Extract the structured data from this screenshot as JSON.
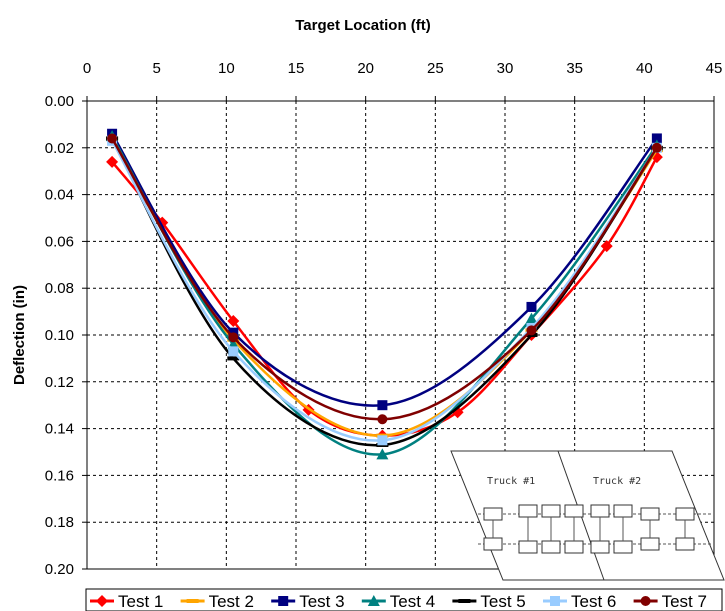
{
  "chart_data": {
    "type": "line",
    "xlabel": "Target Location (ft)",
    "ylabel": "Deflection (in)",
    "xlim": [
      0,
      45
    ],
    "ylim": [
      0,
      0.2
    ],
    "y_inverted": true,
    "x_axis_position": "top",
    "x_ticks": [
      "0",
      "5",
      "10",
      "15",
      "20",
      "25",
      "30",
      "35",
      "40",
      "45"
    ],
    "y_ticks": [
      "0.00",
      "0.02",
      "0.04",
      "0.06",
      "0.08",
      "0.10",
      "0.12",
      "0.14",
      "0.16",
      "0.18",
      "0.20"
    ],
    "grid": true,
    "legend_position": "bottom",
    "series": [
      {
        "name": "Test 1",
        "color": "#ff0000",
        "marker": "diamond",
        "x": [
          1.8,
          5.4,
          10.5,
          15.9,
          21.2,
          26.6,
          31.9,
          37.3,
          40.9
        ],
        "y": [
          0.026,
          0.052,
          0.094,
          0.132,
          0.143,
          0.133,
          0.1,
          0.062,
          0.024
        ]
      },
      {
        "name": "Test 2",
        "color": "#ffa500",
        "marker": "dash",
        "x": [
          1.8,
          10.5,
          21.2,
          31.9,
          40.9
        ],
        "y": [
          0.016,
          0.102,
          0.143,
          0.098,
          0.021
        ]
      },
      {
        "name": "Test 3",
        "color": "#000080",
        "marker": "square",
        "x": [
          1.8,
          10.5,
          21.2,
          31.9,
          40.9
        ],
        "y": [
          0.014,
          0.099,
          0.13,
          0.088,
          0.016
        ]
      },
      {
        "name": "Test 4",
        "color": "#008080",
        "marker": "triangle",
        "x": [
          1.8,
          10.5,
          21.2,
          31.9,
          40.9
        ],
        "y": [
          0.015,
          0.104,
          0.151,
          0.093,
          0.019
        ]
      },
      {
        "name": "Test 5",
        "color": "#000000",
        "marker": "dash",
        "x": [
          1.8,
          10.5,
          21.2,
          31.9,
          40.9
        ],
        "y": [
          0.016,
          0.11,
          0.147,
          0.1,
          0.02
        ]
      },
      {
        "name": "Test 6",
        "color": "#99ccff",
        "marker": "square",
        "x": [
          1.8,
          10.5,
          21.2,
          31.9,
          40.9
        ],
        "y": [
          0.017,
          0.107,
          0.145,
          0.097,
          0.02
        ]
      },
      {
        "name": "Test 7",
        "color": "#800000",
        "marker": "circle",
        "x": [
          1.8,
          10.5,
          21.2,
          31.9,
          40.9
        ],
        "y": [
          0.016,
          0.101,
          0.136,
          0.098,
          0.02
        ]
      }
    ],
    "inset": {
      "labels": [
        "Truck #1",
        "Truck #2"
      ]
    }
  }
}
